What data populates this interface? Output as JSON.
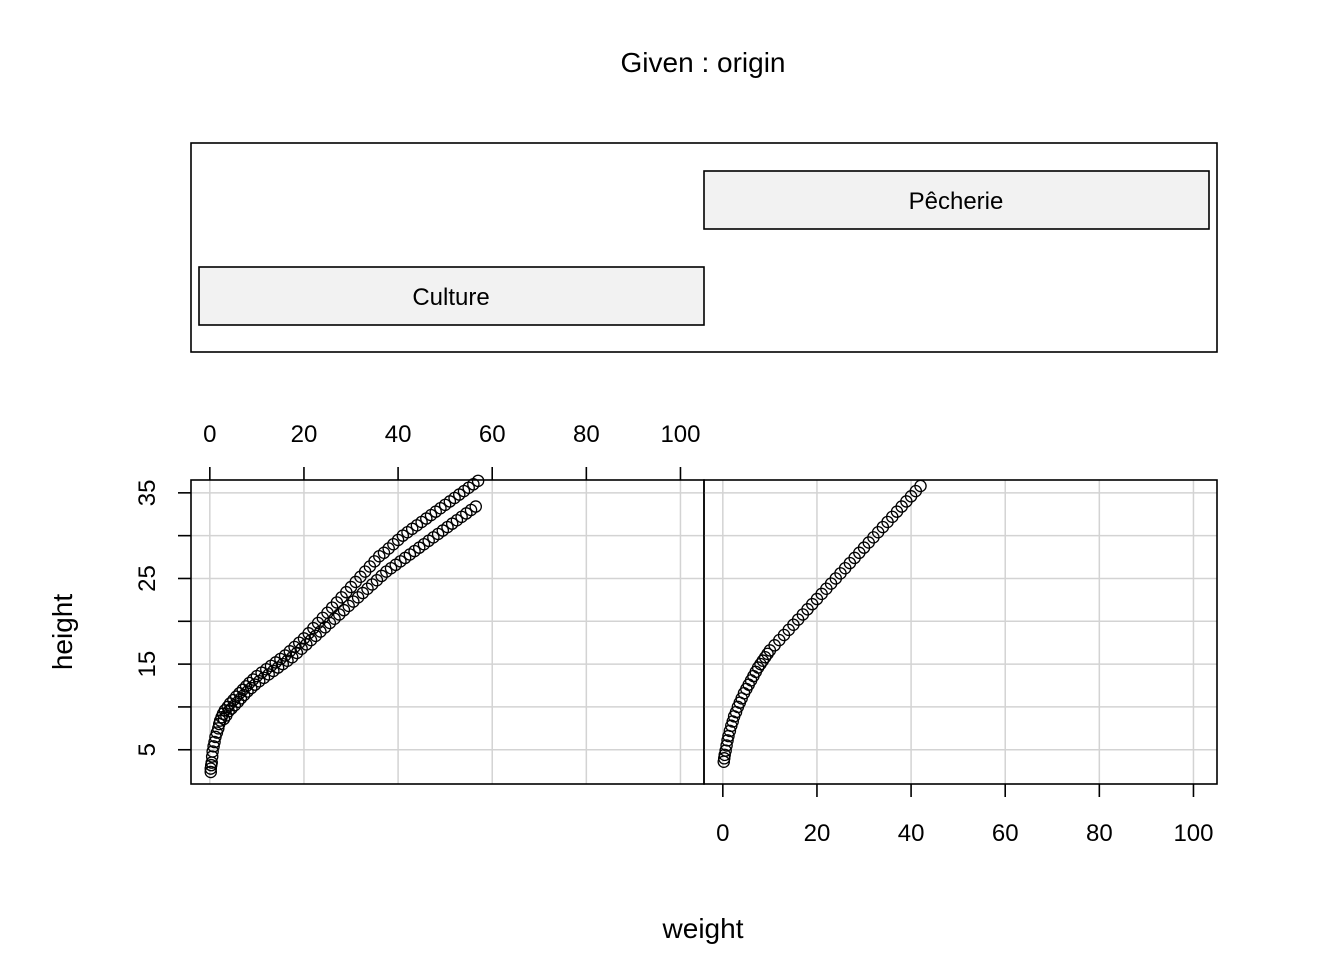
{
  "chart_data": {
    "type": "scatter",
    "title": "Given : origin",
    "xlabel": "weight",
    "ylabel": "height",
    "xlim": [
      -4,
      105
    ],
    "ylim": [
      1,
      36.5
    ],
    "x_ticks": [
      0,
      20,
      40,
      60,
      80,
      100
    ],
    "x_tick_labels": [
      "0",
      "20",
      "40",
      "60",
      "80",
      "100"
    ],
    "y_ticks": [
      5,
      10,
      15,
      20,
      25,
      30,
      35
    ],
    "y_labeled_ticks": [
      5,
      15,
      25,
      35
    ],
    "y_tick_labels": [
      "5",
      "15",
      "25",
      "35"
    ],
    "grid": true,
    "given": {
      "name": "origin",
      "levels": [
        "Culture",
        "Pêcherie"
      ]
    },
    "panels": [
      {
        "name": "Culture",
        "points": [
          [
            0.2,
            2.4
          ],
          [
            0.2,
            2.8
          ],
          [
            0.3,
            3.2
          ],
          [
            0.4,
            3.5
          ],
          [
            0.5,
            4.2
          ],
          [
            0.6,
            4.8
          ],
          [
            0.8,
            5.4
          ],
          [
            1.0,
            5.9
          ],
          [
            1.2,
            6.5
          ],
          [
            1.5,
            7.0
          ],
          [
            1.8,
            7.5
          ],
          [
            2.0,
            8.0
          ],
          [
            2.2,
            8.4
          ],
          [
            2.5,
            8.8
          ],
          [
            2.8,
            9.2
          ],
          [
            3.0,
            8.6
          ],
          [
            3.2,
            9.6
          ],
          [
            3.5,
            9.0
          ],
          [
            3.8,
            10.0
          ],
          [
            4.0,
            9.5
          ],
          [
            4.3,
            10.4
          ],
          [
            4.6,
            9.8
          ],
          [
            5.0,
            10.8
          ],
          [
            5.3,
            10.2
          ],
          [
            5.6,
            11.2
          ],
          [
            6.0,
            10.6
          ],
          [
            6.3,
            11.6
          ],
          [
            6.6,
            11.0
          ],
          [
            7.0,
            12.0
          ],
          [
            7.3,
            11.4
          ],
          [
            7.7,
            12.4
          ],
          [
            8.0,
            11.8
          ],
          [
            8.4,
            12.8
          ],
          [
            8.8,
            12.2
          ],
          [
            9.2,
            13.2
          ],
          [
            9.6,
            12.6
          ],
          [
            10.0,
            13.6
          ],
          [
            10.5,
            13.0
          ],
          [
            11.0,
            14.0
          ],
          [
            11.5,
            13.4
          ],
          [
            12.0,
            14.4
          ],
          [
            12.5,
            13.8
          ],
          [
            13.0,
            14.8
          ],
          [
            13.5,
            14.2
          ],
          [
            14.0,
            15.2
          ],
          [
            14.5,
            14.6
          ],
          [
            15.0,
            15.6
          ],
          [
            15.5,
            15.0
          ],
          [
            16.0,
            16.0
          ],
          [
            16.5,
            15.4
          ],
          [
            17.0,
            16.5
          ],
          [
            17.5,
            15.8
          ],
          [
            18.0,
            17.0
          ],
          [
            18.5,
            16.3
          ],
          [
            19.0,
            17.5
          ],
          [
            19.5,
            16.8
          ],
          [
            20.0,
            18.0
          ],
          [
            20.5,
            17.3
          ],
          [
            21.0,
            18.6
          ],
          [
            21.5,
            17.8
          ],
          [
            22.0,
            19.2
          ],
          [
            22.5,
            18.3
          ],
          [
            23.0,
            19.8
          ],
          [
            23.5,
            18.8
          ],
          [
            24.0,
            20.4
          ],
          [
            24.5,
            19.3
          ],
          [
            25.0,
            21.0
          ],
          [
            25.5,
            19.8
          ],
          [
            26.0,
            21.6
          ],
          [
            26.5,
            20.3
          ],
          [
            27.0,
            22.2
          ],
          [
            27.5,
            20.8
          ],
          [
            28.0,
            22.8
          ],
          [
            28.5,
            21.3
          ],
          [
            29.0,
            23.4
          ],
          [
            29.5,
            21.8
          ],
          [
            30.0,
            24.0
          ],
          [
            30.5,
            22.3
          ],
          [
            31.0,
            24.6
          ],
          [
            31.5,
            22.8
          ],
          [
            32.0,
            25.2
          ],
          [
            32.5,
            23.3
          ],
          [
            33.0,
            25.8
          ],
          [
            33.5,
            23.8
          ],
          [
            34.0,
            26.4
          ],
          [
            34.5,
            24.3
          ],
          [
            35.0,
            27.0
          ],
          [
            35.5,
            24.8
          ],
          [
            36.0,
            27.6
          ],
          [
            36.5,
            25.3
          ],
          [
            37.0,
            28.0
          ],
          [
            37.5,
            25.8
          ],
          [
            38.0,
            28.5
          ],
          [
            38.5,
            26.2
          ],
          [
            39.0,
            29.0
          ],
          [
            39.5,
            26.6
          ],
          [
            40.0,
            29.5
          ],
          [
            40.5,
            27.0
          ],
          [
            41.0,
            30.0
          ],
          [
            41.5,
            27.4
          ],
          [
            42.0,
            30.4
          ],
          [
            42.5,
            27.8
          ],
          [
            43.0,
            30.8
          ],
          [
            43.5,
            28.2
          ],
          [
            44.0,
            31.2
          ],
          [
            44.5,
            28.6
          ],
          [
            45.0,
            31.6
          ],
          [
            45.5,
            29.0
          ],
          [
            46.0,
            32.0
          ],
          [
            46.5,
            29.4
          ],
          [
            47.0,
            32.4
          ],
          [
            47.5,
            29.8
          ],
          [
            48.0,
            32.8
          ],
          [
            48.5,
            30.2
          ],
          [
            49.0,
            33.2
          ],
          [
            49.5,
            30.6
          ],
          [
            50.0,
            33.6
          ],
          [
            50.5,
            31.0
          ],
          [
            51.0,
            34.0
          ],
          [
            51.5,
            31.4
          ],
          [
            52.0,
            34.4
          ],
          [
            52.5,
            31.8
          ],
          [
            53.0,
            34.8
          ],
          [
            53.5,
            32.2
          ],
          [
            54.0,
            35.2
          ],
          [
            54.5,
            32.6
          ],
          [
            55.0,
            35.6
          ],
          [
            55.5,
            33.0
          ],
          [
            56.0,
            36.0
          ],
          [
            56.5,
            33.4
          ],
          [
            57.0,
            36.4
          ]
        ]
      },
      {
        "name": "Pêcherie",
        "points": [
          [
            0.2,
            3.6
          ],
          [
            0.3,
            4.0
          ],
          [
            0.4,
            4.4
          ],
          [
            0.6,
            4.9
          ],
          [
            0.8,
            5.5
          ],
          [
            1.0,
            6.1
          ],
          [
            1.2,
            6.6
          ],
          [
            1.5,
            7.2
          ],
          [
            1.8,
            7.8
          ],
          [
            2.1,
            8.3
          ],
          [
            2.4,
            8.9
          ],
          [
            2.8,
            9.4
          ],
          [
            3.2,
            10.0
          ],
          [
            3.6,
            10.5
          ],
          [
            4.0,
            11.0
          ],
          [
            4.5,
            11.6
          ],
          [
            5.0,
            12.1
          ],
          [
            5.5,
            12.6
          ],
          [
            6.0,
            13.1
          ],
          [
            6.5,
            13.6
          ],
          [
            7.0,
            14.1
          ],
          [
            7.5,
            14.6
          ],
          [
            8.0,
            15.0
          ],
          [
            8.5,
            15.4
          ],
          [
            9.0,
            15.8
          ],
          [
            9.5,
            16.2
          ],
          [
            10.0,
            16.6
          ],
          [
            11.0,
            17.2
          ],
          [
            12.0,
            17.8
          ],
          [
            13.0,
            18.4
          ],
          [
            14.0,
            19.0
          ],
          [
            15.0,
            19.6
          ],
          [
            16.0,
            20.2
          ],
          [
            17.0,
            20.8
          ],
          [
            18.0,
            21.4
          ],
          [
            19.0,
            22.0
          ],
          [
            20.0,
            22.6
          ],
          [
            21.0,
            23.2
          ],
          [
            22.0,
            23.8
          ],
          [
            23.0,
            24.4
          ],
          [
            24.0,
            25.0
          ],
          [
            25.0,
            25.6
          ],
          [
            26.0,
            26.2
          ],
          [
            27.0,
            26.8
          ],
          [
            28.0,
            27.4
          ],
          [
            29.0,
            28.0
          ],
          [
            30.0,
            28.6
          ],
          [
            31.0,
            29.2
          ],
          [
            32.0,
            29.8
          ],
          [
            33.0,
            30.4
          ],
          [
            34.0,
            31.0
          ],
          [
            35.0,
            31.6
          ],
          [
            36.0,
            32.2
          ],
          [
            37.0,
            32.8
          ],
          [
            38.0,
            33.4
          ],
          [
            39.0,
            34.0
          ],
          [
            40.0,
            34.6
          ],
          [
            41.0,
            35.2
          ],
          [
            42.0,
            35.8
          ]
        ]
      }
    ]
  }
}
